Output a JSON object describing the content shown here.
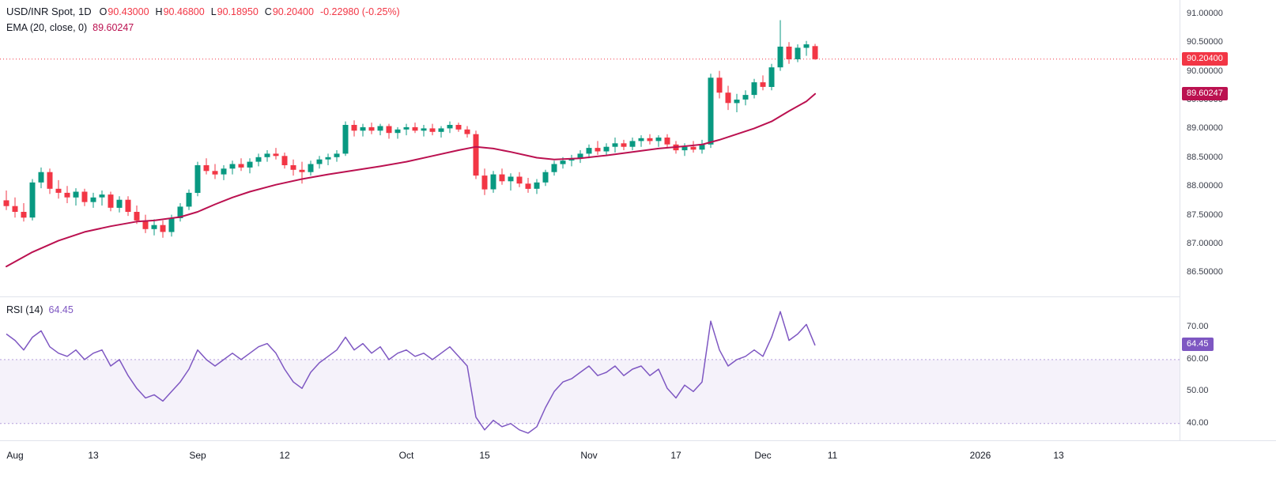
{
  "header": {
    "symbol_text": "USD/INR Spot, 1D",
    "ohlc": {
      "o_label": "O",
      "o": "90.43000",
      "h_label": "H",
      "h": "90.46800",
      "l_label": "L",
      "l": "90.18950",
      "c_label": "C",
      "c": "90.20400",
      "change": "-0.22980 (-0.25%)"
    },
    "ema_label": "EMA (20, close, 0)",
    "ema_value": "89.60247"
  },
  "rsi_header": {
    "label": "RSI (14)",
    "value": "64.45"
  },
  "axis": {
    "price_badge": {
      "label": "90.20400",
      "value": 90.204
    },
    "ema_badge": {
      "label": "89.60247",
      "value": 89.60247
    },
    "rsi_badge": {
      "label": "64.45",
      "value": 64.45
    }
  },
  "colors": {
    "up": "#089981",
    "down": "#f23645",
    "ema": "#bb1150",
    "rsi": "#7e57c2",
    "rsi_band_fill": "rgba(126,87,194,0.08)",
    "rsi_band_line": "rgba(126,87,194,0.55)",
    "axis_text": "#3a3e4a",
    "text": "#131722",
    "separator": "#e0e3eb"
  },
  "chart_data": {
    "type": "candlestick",
    "title": "USD/INR Spot, 1D",
    "legend_position": "top-left",
    "grid": false,
    "x_axis": {
      "x_start": 8,
      "x_step": 11,
      "ticks": [
        {
          "i": 1,
          "label": "Aug",
          "major": true
        },
        {
          "i": 10,
          "label": "13",
          "major": false
        },
        {
          "i": 22,
          "label": "Sep",
          "major": true
        },
        {
          "i": 32,
          "label": "12",
          "major": false
        },
        {
          "i": 46,
          "label": "Oct",
          "major": true
        },
        {
          "i": 55,
          "label": "15",
          "major": false
        },
        {
          "i": 67,
          "label": "Nov",
          "major": true
        },
        {
          "i": 77,
          "label": "17",
          "major": false
        },
        {
          "i": 87,
          "label": "Dec",
          "major": true
        },
        {
          "i": 95,
          "label": "11",
          "major": false
        },
        {
          "i": 112,
          "label": "2026",
          "major": true
        },
        {
          "i": 121,
          "label": "13",
          "major": false
        }
      ]
    },
    "main": {
      "ylim": [
        86.08,
        91.23
      ],
      "current_price": 90.204,
      "price_ticks": [
        {
          "v": 91.0,
          "label": "91.00000"
        },
        {
          "v": 90.5,
          "label": "90.50000"
        },
        {
          "v": 90.0,
          "label": "90.00000"
        },
        {
          "v": 89.5,
          "label": "89.50000"
        },
        {
          "v": 89.0,
          "label": "89.00000"
        },
        {
          "v": 88.5,
          "label": "88.50000"
        },
        {
          "v": 88.0,
          "label": "88.00000"
        },
        {
          "v": 87.5,
          "label": "87.50000"
        },
        {
          "v": 87.0,
          "label": "87.00000"
        },
        {
          "v": 86.5,
          "label": "86.50000"
        }
      ],
      "candles_ohlc": [
        [
          87.75,
          87.92,
          87.58,
          87.65
        ],
        [
          87.65,
          87.8,
          87.45,
          87.55
        ],
        [
          87.55,
          87.7,
          87.38,
          87.45
        ],
        [
          87.45,
          88.12,
          87.4,
          88.06
        ],
        [
          88.06,
          88.32,
          87.96,
          88.24
        ],
        [
          88.24,
          88.3,
          87.86,
          87.95
        ],
        [
          87.95,
          88.1,
          87.78,
          87.88
        ],
        [
          87.88,
          88.0,
          87.7,
          87.8
        ],
        [
          87.8,
          87.96,
          87.66,
          87.9
        ],
        [
          87.9,
          87.95,
          87.65,
          87.72
        ],
        [
          87.72,
          87.88,
          87.62,
          87.8
        ],
        [
          87.8,
          87.92,
          87.66,
          87.85
        ],
        [
          87.85,
          87.9,
          87.56,
          87.62
        ],
        [
          87.62,
          87.82,
          87.54,
          87.76
        ],
        [
          87.76,
          87.82,
          87.48,
          87.55
        ],
        [
          87.55,
          87.66,
          87.34,
          87.4
        ],
        [
          87.4,
          87.5,
          87.18,
          87.25
        ],
        [
          87.25,
          87.42,
          87.14,
          87.32
        ],
        [
          87.32,
          87.4,
          87.1,
          87.2
        ],
        [
          87.2,
          87.5,
          87.12,
          87.44
        ],
        [
          87.44,
          87.7,
          87.38,
          87.64
        ],
        [
          87.64,
          87.94,
          87.58,
          87.88
        ],
        [
          87.88,
          88.42,
          87.82,
          88.36
        ],
        [
          88.36,
          88.48,
          88.2,
          88.26
        ],
        [
          88.26,
          88.38,
          88.12,
          88.2
        ],
        [
          88.2,
          88.36,
          88.1,
          88.3
        ],
        [
          88.3,
          88.44,
          88.2,
          88.38
        ],
        [
          88.38,
          88.48,
          88.26,
          88.32
        ],
        [
          88.32,
          88.48,
          88.22,
          88.42
        ],
        [
          88.42,
          88.56,
          88.34,
          88.5
        ],
        [
          88.5,
          88.62,
          88.42,
          88.56
        ],
        [
          88.56,
          88.66,
          88.46,
          88.52
        ],
        [
          88.52,
          88.58,
          88.3,
          88.36
        ],
        [
          88.36,
          88.46,
          88.18,
          88.28
        ],
        [
          88.28,
          88.42,
          88.04,
          88.24
        ],
        [
          88.24,
          88.44,
          88.18,
          88.38
        ],
        [
          88.38,
          88.52,
          88.3,
          88.46
        ],
        [
          88.46,
          88.56,
          88.36,
          88.5
        ],
        [
          88.5,
          88.62,
          88.42,
          88.56
        ],
        [
          88.56,
          89.12,
          88.52,
          89.06
        ],
        [
          89.06,
          89.14,
          88.86,
          88.96
        ],
        [
          88.96,
          89.08,
          88.86,
          89.02
        ],
        [
          89.02,
          89.1,
          88.9,
          88.96
        ],
        [
          88.96,
          89.08,
          88.88,
          89.04
        ],
        [
          89.04,
          89.08,
          88.82,
          88.92
        ],
        [
          88.92,
          89.02,
          88.82,
          88.98
        ],
        [
          88.98,
          89.08,
          88.88,
          89.02
        ],
        [
          89.02,
          89.1,
          88.92,
          88.96
        ],
        [
          88.96,
          89.06,
          88.86,
          89.0
        ],
        [
          89.0,
          89.08,
          88.88,
          88.94
        ],
        [
          88.94,
          89.04,
          88.84,
          89.0
        ],
        [
          89.0,
          89.12,
          88.92,
          89.06
        ],
        [
          89.06,
          89.1,
          88.94,
          88.98
        ],
        [
          88.98,
          89.04,
          88.84,
          88.9
        ],
        [
          88.9,
          88.96,
          88.12,
          88.18
        ],
        [
          88.18,
          88.3,
          87.84,
          87.94
        ],
        [
          87.94,
          88.26,
          87.88,
          88.2
        ],
        [
          88.2,
          88.3,
          88.02,
          88.08
        ],
        [
          88.08,
          88.22,
          87.92,
          88.16
        ],
        [
          88.16,
          88.24,
          87.98,
          88.04
        ],
        [
          88.04,
          88.14,
          87.88,
          87.95
        ],
        [
          87.95,
          88.12,
          87.86,
          88.06
        ],
        [
          88.06,
          88.28,
          88.0,
          88.24
        ],
        [
          88.24,
          88.44,
          88.18,
          88.38
        ],
        [
          88.38,
          88.5,
          88.3,
          88.44
        ],
        [
          88.44,
          88.54,
          88.34,
          88.48
        ],
        [
          88.48,
          88.62,
          88.4,
          88.56
        ],
        [
          88.56,
          88.72,
          88.48,
          88.66
        ],
        [
          88.66,
          88.78,
          88.54,
          88.6
        ],
        [
          88.6,
          88.74,
          88.52,
          88.68
        ],
        [
          88.68,
          88.84,
          88.58,
          88.74
        ],
        [
          88.74,
          88.8,
          88.62,
          88.68
        ],
        [
          88.68,
          88.84,
          88.62,
          88.78
        ],
        [
          88.78,
          88.88,
          88.68,
          88.83
        ],
        [
          88.83,
          88.9,
          88.72,
          88.78
        ],
        [
          88.78,
          88.88,
          88.68,
          88.84
        ],
        [
          88.84,
          88.9,
          88.66,
          88.72
        ],
        [
          88.72,
          88.78,
          88.56,
          88.62
        ],
        [
          88.62,
          88.74,
          88.52,
          88.68
        ],
        [
          88.68,
          88.78,
          88.58,
          88.63
        ],
        [
          88.63,
          88.8,
          88.56,
          88.73
        ],
        [
          88.72,
          89.95,
          88.66,
          89.88
        ],
        [
          89.88,
          90.0,
          89.52,
          89.62
        ],
        [
          89.62,
          89.74,
          89.32,
          89.44
        ],
        [
          89.44,
          89.6,
          89.28,
          89.5
        ],
        [
          89.5,
          89.66,
          89.4,
          89.58
        ],
        [
          89.58,
          89.86,
          89.52,
          89.8
        ],
        [
          89.8,
          89.92,
          89.66,
          89.72
        ],
        [
          89.72,
          90.12,
          89.66,
          90.06
        ],
        [
          90.06,
          90.88,
          90.0,
          90.42
        ],
        [
          90.42,
          90.5,
          90.12,
          90.2
        ],
        [
          90.2,
          90.46,
          90.15,
          90.4
        ],
        [
          90.4,
          90.52,
          90.26,
          90.46
        ],
        [
          90.43,
          90.468,
          90.1895,
          90.204
        ]
      ],
      "ema": {
        "period": 20,
        "source": "close",
        "offset": 0,
        "value": 89.60247,
        "points": [
          [
            0,
            86.6
          ],
          [
            3,
            86.85
          ],
          [
            6,
            87.05
          ],
          [
            9,
            87.2
          ],
          [
            12,
            87.3
          ],
          [
            15,
            87.38
          ],
          [
            17,
            87.4
          ],
          [
            20,
            87.46
          ],
          [
            22,
            87.55
          ],
          [
            24,
            87.68
          ],
          [
            26,
            87.8
          ],
          [
            28,
            87.9
          ],
          [
            31,
            88.02
          ],
          [
            34,
            88.12
          ],
          [
            37,
            88.2
          ],
          [
            40,
            88.27
          ],
          [
            43,
            88.34
          ],
          [
            46,
            88.42
          ],
          [
            49,
            88.52
          ],
          [
            52,
            88.62
          ],
          [
            54,
            88.68
          ],
          [
            56,
            88.65
          ],
          [
            58,
            88.59
          ],
          [
            61,
            88.49
          ],
          [
            63,
            88.46
          ],
          [
            66,
            88.48
          ],
          [
            69,
            88.53
          ],
          [
            72,
            88.59
          ],
          [
            75,
            88.65
          ],
          [
            78,
            88.69
          ],
          [
            80,
            88.72
          ],
          [
            82,
            88.8
          ],
          [
            84,
            88.9
          ],
          [
            86,
            89.0
          ],
          [
            88,
            89.12
          ],
          [
            90,
            89.3
          ],
          [
            92,
            89.47
          ],
          [
            93,
            89.6
          ]
        ]
      }
    },
    "rsi": {
      "period": 14,
      "value": 64.45,
      "ylim": [
        34.5,
        79.5
      ],
      "upper_band": 60,
      "lower_band": 40,
      "ticks": [
        {
          "v": 70,
          "label": "70.00"
        },
        {
          "v": 60,
          "label": "60.00"
        },
        {
          "v": 50,
          "label": "50.00"
        },
        {
          "v": 40,
          "label": "40.00"
        }
      ],
      "points": [
        [
          0,
          68
        ],
        [
          1,
          66
        ],
        [
          2,
          63
        ],
        [
          3,
          67
        ],
        [
          4,
          69
        ],
        [
          5,
          64
        ],
        [
          6,
          62
        ],
        [
          7,
          61
        ],
        [
          8,
          63
        ],
        [
          9,
          60
        ],
        [
          10,
          62
        ],
        [
          11,
          63
        ],
        [
          12,
          58
        ],
        [
          13,
          60
        ],
        [
          14,
          55
        ],
        [
          15,
          51
        ],
        [
          16,
          48
        ],
        [
          17,
          49
        ],
        [
          18,
          47
        ],
        [
          19,
          50
        ],
        [
          20,
          53
        ],
        [
          21,
          57
        ],
        [
          22,
          63
        ],
        [
          23,
          60
        ],
        [
          24,
          58
        ],
        [
          25,
          60
        ],
        [
          26,
          62
        ],
        [
          27,
          60
        ],
        [
          28,
          62
        ],
        [
          29,
          64
        ],
        [
          30,
          65
        ],
        [
          31,
          62
        ],
        [
          32,
          57
        ],
        [
          33,
          53
        ],
        [
          34,
          51
        ],
        [
          35,
          56
        ],
        [
          36,
          59
        ],
        [
          37,
          61
        ],
        [
          38,
          63
        ],
        [
          39,
          67
        ],
        [
          40,
          63
        ],
        [
          41,
          65
        ],
        [
          42,
          62
        ],
        [
          43,
          64
        ],
        [
          44,
          60
        ],
        [
          45,
          62
        ],
        [
          46,
          63
        ],
        [
          47,
          61
        ],
        [
          48,
          62
        ],
        [
          49,
          60
        ],
        [
          50,
          62
        ],
        [
          51,
          64
        ],
        [
          52,
          61
        ],
        [
          53,
          58
        ],
        [
          54,
          42
        ],
        [
          55,
          38
        ],
        [
          56,
          41
        ],
        [
          57,
          39
        ],
        [
          58,
          40
        ],
        [
          59,
          38
        ],
        [
          60,
          37
        ],
        [
          61,
          39
        ],
        [
          62,
          45
        ],
        [
          63,
          50
        ],
        [
          64,
          53
        ],
        [
          65,
          54
        ],
        [
          66,
          56
        ],
        [
          67,
          58
        ],
        [
          68,
          55
        ],
        [
          69,
          56
        ],
        [
          70,
          58
        ],
        [
          71,
          55
        ],
        [
          72,
          57
        ],
        [
          73,
          58
        ],
        [
          74,
          55
        ],
        [
          75,
          57
        ],
        [
          76,
          51
        ],
        [
          77,
          48
        ],
        [
          78,
          52
        ],
        [
          79,
          50
        ],
        [
          80,
          53
        ],
        [
          81,
          72
        ],
        [
          82,
          63
        ],
        [
          83,
          58
        ],
        [
          84,
          60
        ],
        [
          85,
          61
        ],
        [
          86,
          63
        ],
        [
          87,
          61
        ],
        [
          88,
          67
        ],
        [
          89,
          75
        ],
        [
          90,
          66
        ],
        [
          91,
          68
        ],
        [
          92,
          71
        ],
        [
          93,
          64.45
        ]
      ]
    }
  }
}
